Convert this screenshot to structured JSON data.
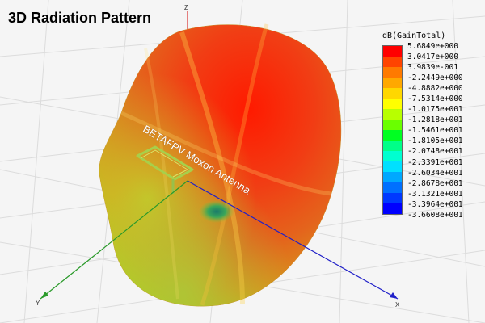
{
  "title": "3D Radiation Pattern",
  "antenna_label": "BETAFPV Moxon Antenna",
  "axes": {
    "z_label": "Z",
    "y_label": "Y",
    "x_label": "X"
  },
  "legend": {
    "title": "dB(GainTotal)",
    "entries": [
      {
        "value": "5.6849e+000",
        "color": "#ff0000"
      },
      {
        "value": "3.0417e+000",
        "color": "#ff4400"
      },
      {
        "value": "3.9839e-001",
        "color": "#ff7a00"
      },
      {
        "value": "-2.2449e+000",
        "color": "#ffa800"
      },
      {
        "value": "-4.8882e+000",
        "color": "#ffd700"
      },
      {
        "value": "-7.5314e+000",
        "color": "#ffff00"
      },
      {
        "value": "-1.0175e+001",
        "color": "#b8ff00"
      },
      {
        "value": "-1.2818e+001",
        "color": "#6aff00"
      },
      {
        "value": "-1.5461e+001",
        "color": "#00ff22"
      },
      {
        "value": "-1.8105e+001",
        "color": "#00ff88"
      },
      {
        "value": "-2.0748e+001",
        "color": "#00ffd0"
      },
      {
        "value": "-2.3391e+001",
        "color": "#00e0ff"
      },
      {
        "value": "-2.6034e+001",
        "color": "#00a8ff"
      },
      {
        "value": "-2.8678e+001",
        "color": "#0070ff"
      },
      {
        "value": "-3.1321e+001",
        "color": "#0038ff"
      },
      {
        "value": "-3.3964e+001",
        "color": "#0000ff"
      }
    ],
    "bottom_value": "-3.6608e+001"
  }
}
